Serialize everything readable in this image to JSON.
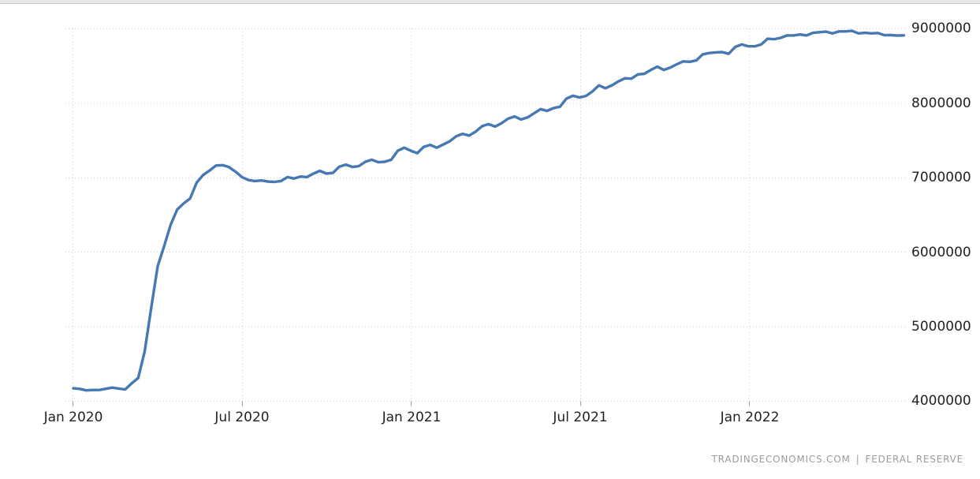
{
  "page": {
    "background": "#ffffff"
  },
  "chart_data": {
    "type": "line",
    "title": "",
    "legend": "none",
    "grid": "dotted",
    "grid_color": "#cccccc",
    "line_color": "#4678b2",
    "x_tick_labels": [
      "Jan 2020",
      "Jul 2020",
      "Jan 2021",
      "Jul 2021",
      "Jan 2022"
    ],
    "y_tick_labels": [
      "9000000",
      "8000000",
      "7000000",
      "6000000",
      "5000000",
      "4000000"
    ],
    "y_tick_values": [
      9000000,
      8000000,
      7000000,
      6000000,
      5000000,
      4000000
    ],
    "ylim": [
      4000000,
      9000000
    ],
    "x_unit": "week",
    "x_start": "Jan 2020",
    "series": [
      {
        "name": "series-1",
        "values": [
          4174000,
          4166000,
          4146000,
          4152000,
          4151000,
          4167000,
          4183000,
          4171000,
          4159000,
          4242000,
          4312000,
          4668000,
          5254000,
          5812000,
          6083000,
          6368000,
          6573000,
          6656000,
          6721000,
          6934000,
          7037000,
          7097000,
          7165000,
          7169000,
          7143000,
          7082000,
          7009000,
          6969000,
          6957000,
          6964000,
          6949000,
          6945000,
          6957000,
          7010000,
          6990000,
          7017000,
          7010000,
          7056000,
          7093000,
          7056000,
          7066000,
          7149000,
          7177000,
          7146000,
          7157000,
          7215000,
          7243000,
          7209000,
          7215000,
          7243000,
          7363000,
          7404000,
          7363000,
          7330000,
          7415000,
          7442000,
          7404000,
          7446000,
          7489000,
          7557000,
          7590000,
          7567000,
          7620000,
          7693000,
          7720000,
          7688000,
          7733000,
          7793000,
          7823000,
          7783000,
          7810000,
          7864000,
          7922000,
          7898000,
          7935000,
          7954000,
          8064000,
          8102000,
          8078000,
          8099000,
          8159000,
          8240000,
          8202000,
          8240000,
          8293000,
          8336000,
          8331000,
          8388000,
          8396000,
          8448000,
          8493000,
          8448000,
          8480000,
          8523000,
          8563000,
          8557000,
          8575000,
          8657000,
          8675000,
          8683000,
          8687000,
          8664000,
          8756000,
          8790000,
          8766000,
          8765000,
          8789000,
          8867000,
          8860000,
          8878000,
          8911000,
          8911000,
          8924000,
          8911000,
          8946000,
          8954000,
          8962000,
          8937000,
          8965000,
          8965000,
          8972000,
          8939000,
          8946000,
          8939000,
          8944000,
          8914000,
          8915000,
          8909000,
          8912000
        ]
      }
    ]
  },
  "attribution": {
    "source_site": "TRADINGECONOMICS.COM",
    "separator": "|",
    "source_name": "FEDERAL RESERVE"
  }
}
